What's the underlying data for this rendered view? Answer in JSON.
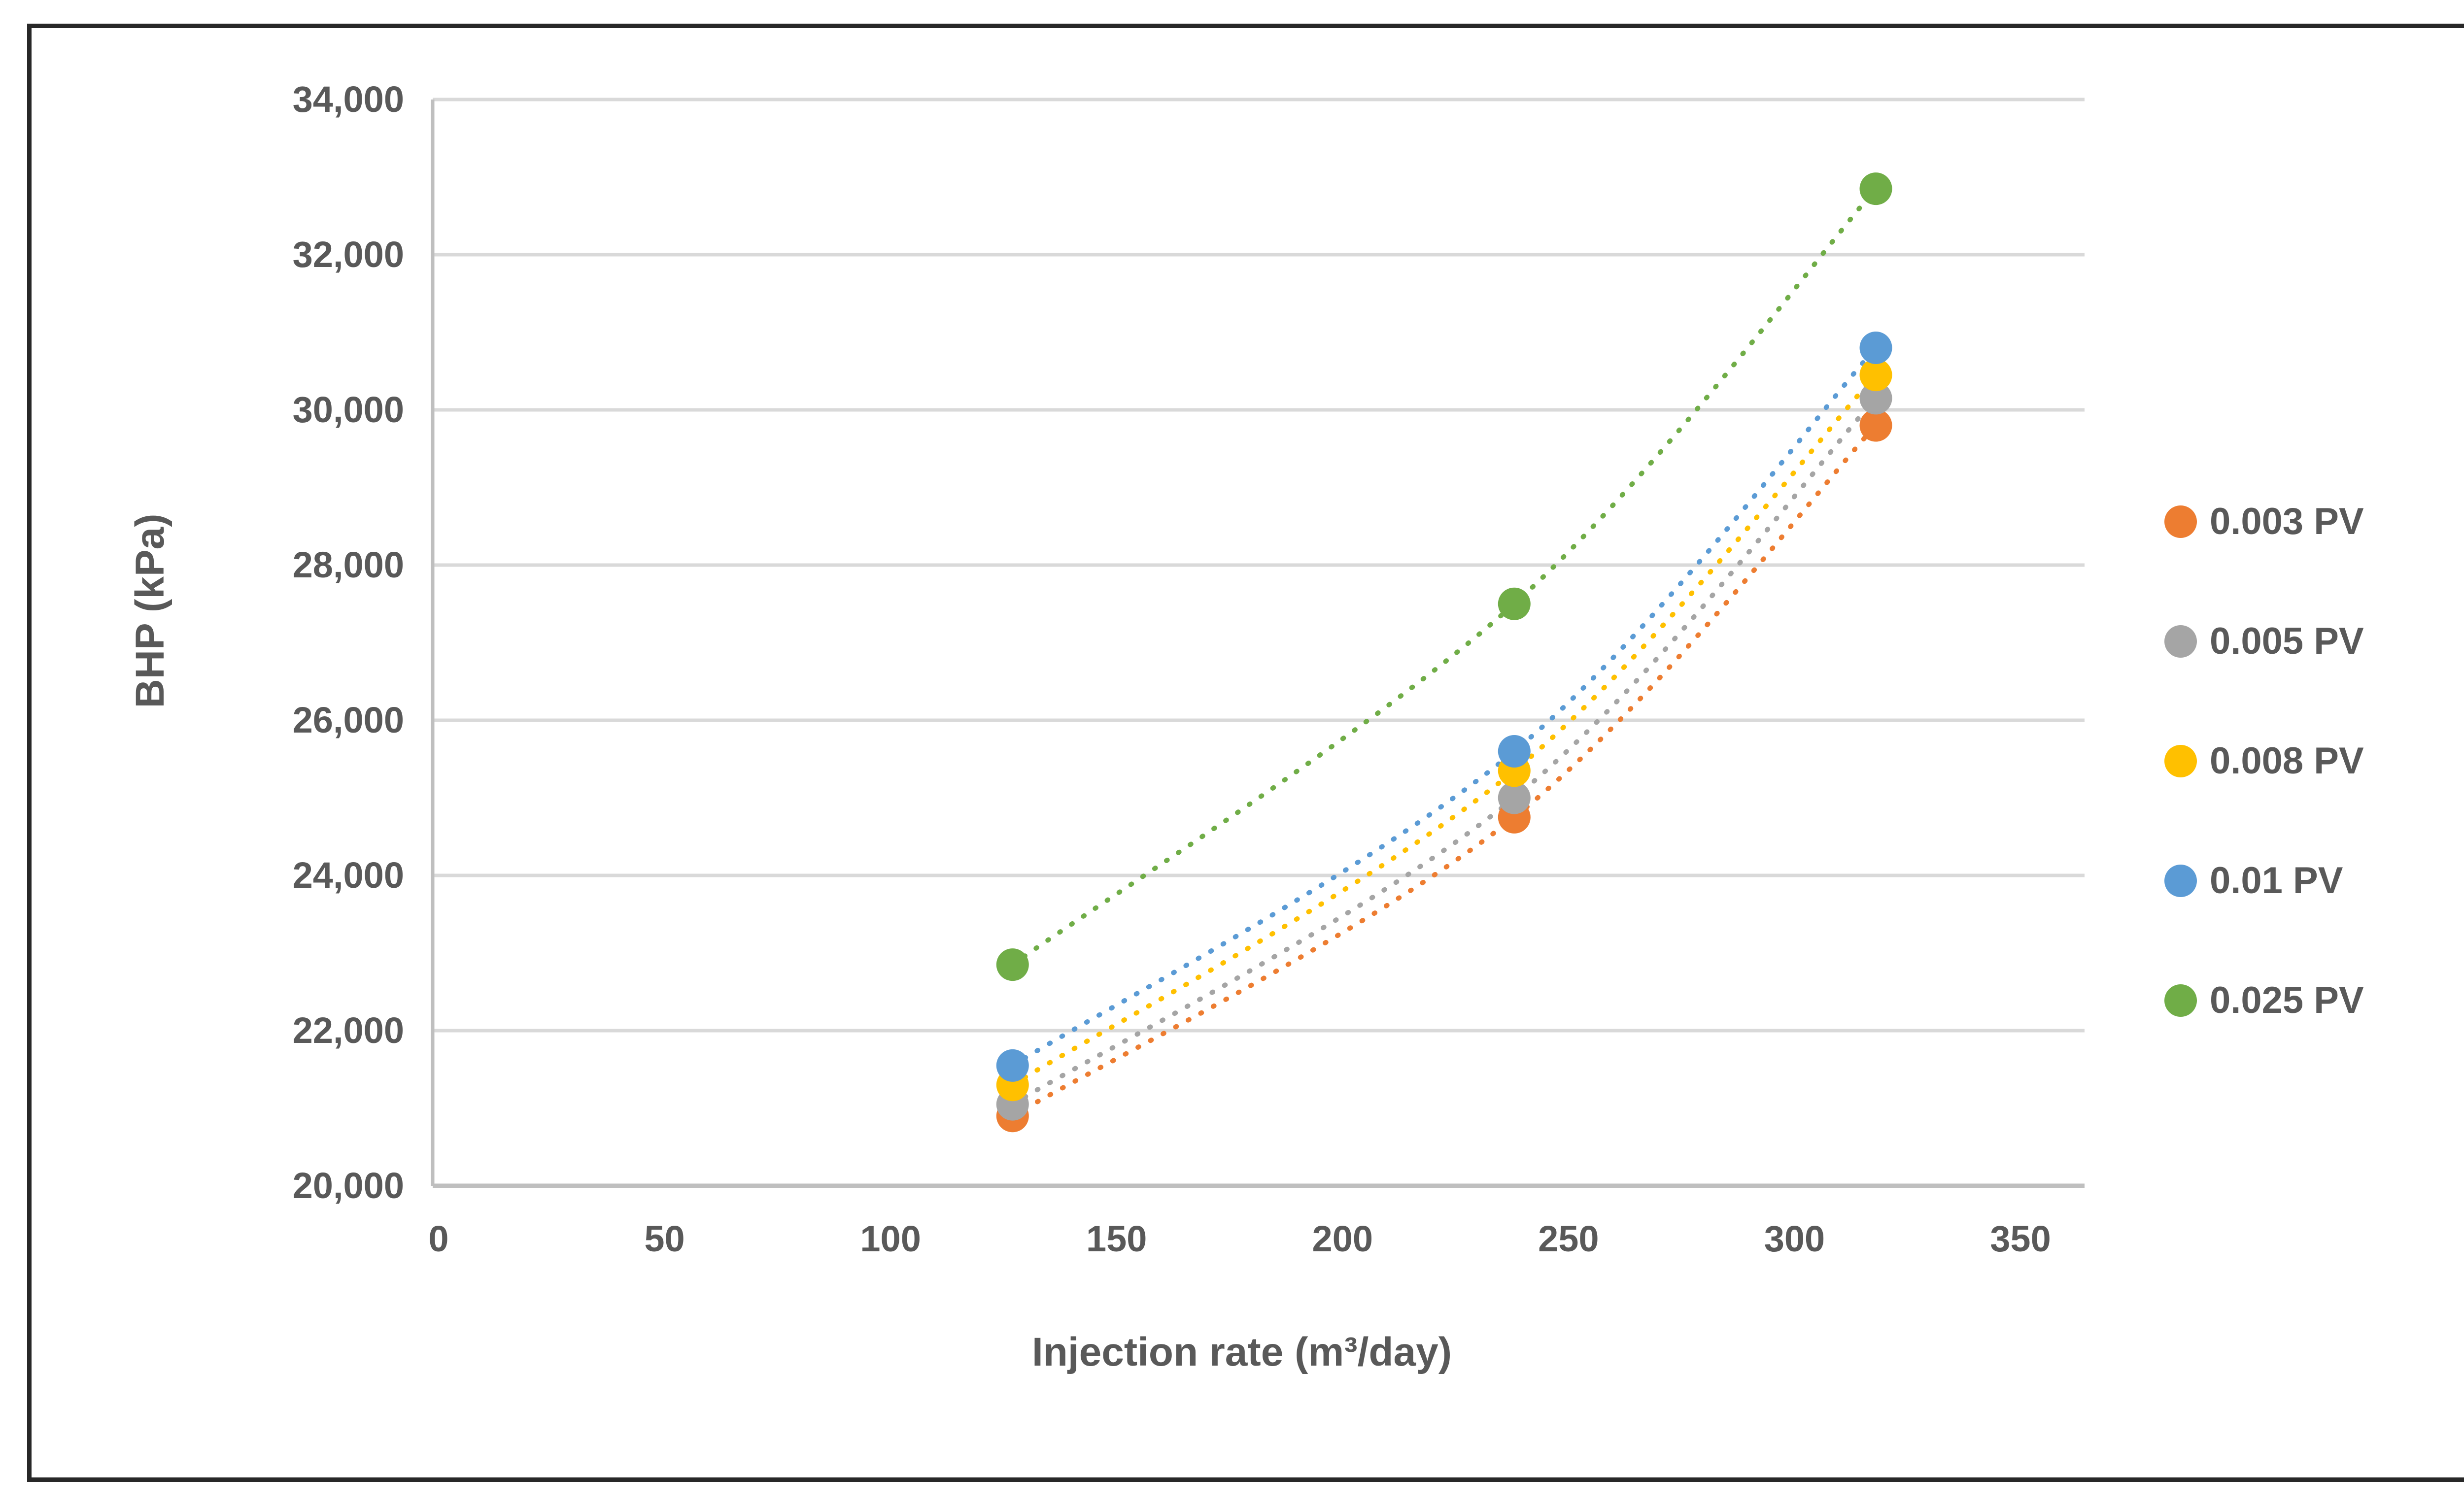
{
  "figure": {
    "background": "#ffffff",
    "border_color": "#282828"
  },
  "colors": {
    "gridline": "#d9d9d9",
    "axis_line": "#bfbfbf",
    "tick_text": "#595959",
    "title_text": "#595959",
    "legend_text": "#595959"
  },
  "chart_data": {
    "type": "scatter",
    "title": "",
    "xlabel": "Injection rate (m³/day)",
    "ylabel": "BHP (kPa)",
    "xlim": [
      0,
      350
    ],
    "ylim": [
      20000,
      34000
    ],
    "x_ticks": [
      0,
      50,
      100,
      150,
      200,
      250,
      300,
      350
    ],
    "y_ticks": [
      20000,
      22000,
      24000,
      26000,
      28000,
      30000,
      32000,
      34000
    ],
    "grid": "horizontal-only",
    "legend_position": "right-middle",
    "marker": "circle",
    "line_style": "dotted",
    "x": [
      127,
      238,
      318
    ],
    "series": [
      {
        "name": "0.003 PV",
        "color": "#ED7D31",
        "values": [
          20900,
          24750,
          29800
        ]
      },
      {
        "name": "0.005 PV",
        "color": "#A5A5A5",
        "values": [
          21050,
          25000,
          30150
        ]
      },
      {
        "name": "0.008 PV",
        "color": "#FFC000",
        "values": [
          21300,
          25350,
          30450
        ]
      },
      {
        "name": "0.01 PV",
        "color": "#5B9BD5",
        "values": [
          21550,
          25600,
          30800
        ]
      },
      {
        "name": "0.025 PV",
        "color": "#70AD47",
        "values": [
          22850,
          27500,
          32850
        ]
      }
    ]
  }
}
